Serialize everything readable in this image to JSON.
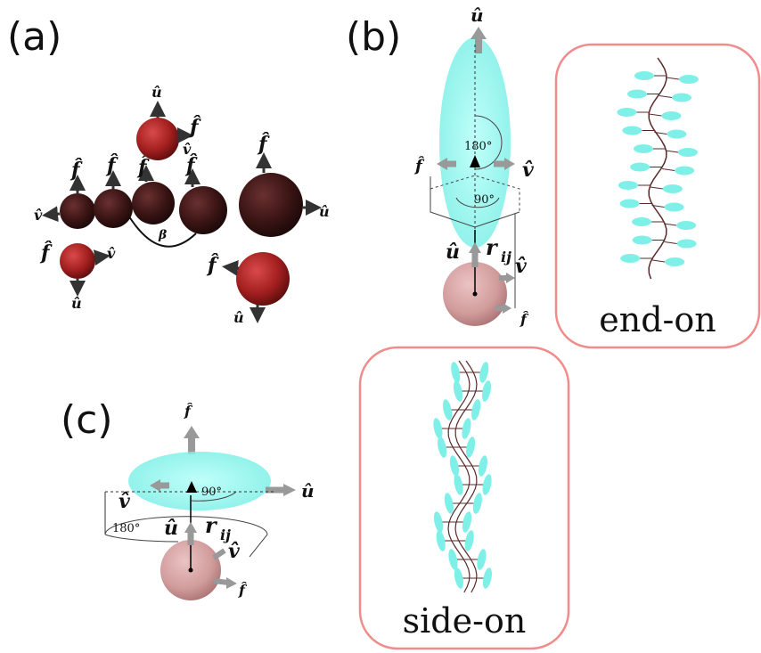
{
  "panels": {
    "a": {
      "label": "(a)",
      "vectors": {
        "u": "û",
        "f": "f̂",
        "v": "v̂"
      },
      "angle_symbol": "β"
    },
    "b": {
      "label": "(b)",
      "vectors": {
        "u": "û",
        "f": "f̂",
        "v": "v̂",
        "r": "r",
        "r_sub": "ij"
      },
      "angles": {
        "top": "180°",
        "side": "90°"
      },
      "inset_caption": "end-on"
    },
    "c": {
      "label": "(c)",
      "vectors": {
        "u": "û",
        "f": "f̂",
        "v": "v̂",
        "r": "r",
        "r_sub": "ij"
      },
      "angles": {
        "top": "90°",
        "side": "180°"
      },
      "inset_caption": "side-on"
    }
  },
  "colors": {
    "sphere_dark": "#3a1414",
    "sphere_red": "#a31f1f",
    "sphere_pink": "#c98a8a",
    "ellipsoid": "#7ff0e8",
    "inset_border": "#f08c8c",
    "backbone": "#5a2a2a"
  }
}
